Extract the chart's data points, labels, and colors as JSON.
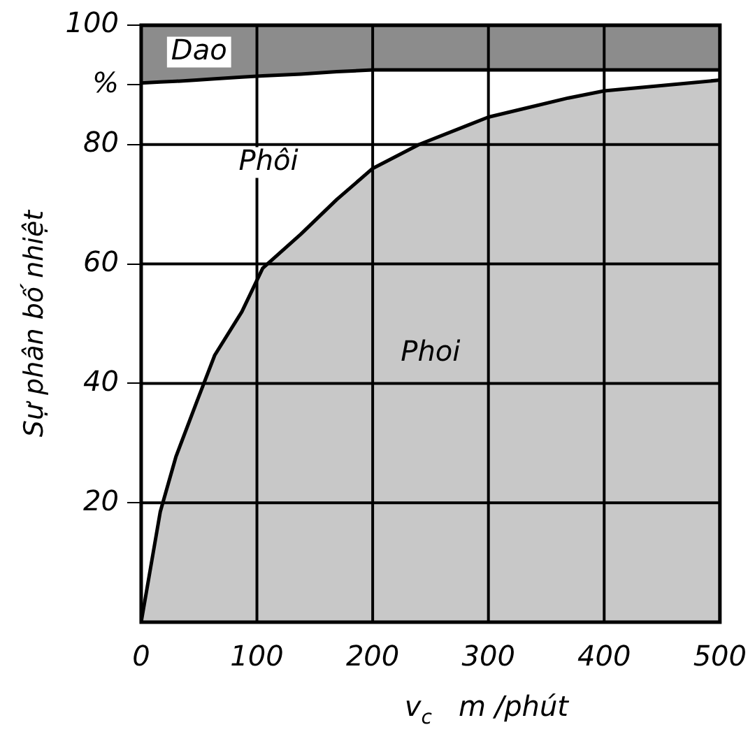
{
  "chart_data": {
    "type": "area",
    "stacked": true,
    "ylabel": "Sự phân bố nhiệt",
    "xlabel": "v$_{c}$   m /phút",
    "x": [
      0,
      16.5,
      30,
      48,
      63.5,
      87,
      105,
      138,
      169,
      200,
      240,
      283,
      300,
      369,
      400,
      467,
      500
    ],
    "series": [
      {
        "name": "Phoi",
        "color": "#c8c8c8",
        "values": [
          0,
          18.5,
          27.7,
          36.9,
          44.7,
          52,
          59.3,
          65,
          70.8,
          76,
          80,
          83.3,
          84.6,
          87.8,
          89,
          90.2,
          90.8
        ]
      },
      {
        "name": "Phôi",
        "color": "#ffffff",
        "values": [
          90.3,
          72.0,
          62.9,
          53.9,
          46.3,
          39.3,
          32.2,
          26.8,
          21.4,
          16.5,
          12.5,
          9.2,
          7.9,
          4.7,
          3.5,
          2.3,
          1.7
        ]
      },
      {
        "name": "Dao",
        "color": "#8c8c8c",
        "values": [
          9.7,
          9.5,
          9.4,
          9.2,
          9.0,
          8.7,
          8.5,
          8.2,
          7.8,
          7.5,
          7.5,
          7.5,
          7.5,
          7.5,
          7.5,
          7.5,
          7.5
        ]
      }
    ],
    "xlim": [
      0,
      500
    ],
    "xticks": [
      0,
      100,
      200,
      300,
      400,
      500
    ],
    "ylim": [
      0,
      100
    ],
    "yticks": [
      20,
      40,
      60,
      80,
      {
        "value": 90,
        "label": "%"
      },
      100
    ],
    "grid": true,
    "legend": false
  }
}
